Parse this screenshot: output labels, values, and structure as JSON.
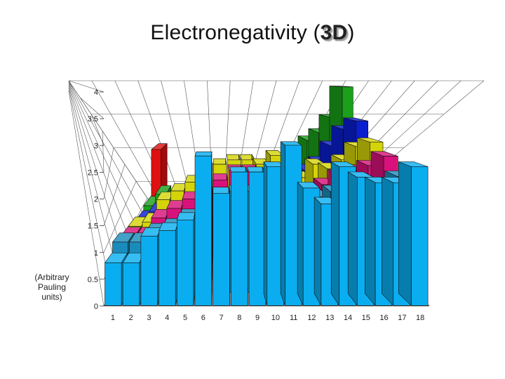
{
  "title": {
    "main": "Electronegativity (",
    "badge": "3D",
    "close": ")"
  },
  "chart_data": {
    "type": "bar",
    "title": "Electronegativity ( 3D )",
    "ylabel": "(Arbitrary Pauling units)",
    "ylabel_lines": [
      "(Arbitrary",
      "Pauling",
      "units)"
    ],
    "categories": [
      "1",
      "2",
      "3",
      "4",
      "5",
      "6",
      "7",
      "8",
      "9",
      "10",
      "11",
      "12",
      "13",
      "14",
      "15",
      "16",
      "17",
      "18"
    ],
    "yticks": [
      "0",
      "0.5",
      "1",
      "1.5",
      "2",
      "2.5",
      "3",
      "3.5",
      "4"
    ],
    "ylim": [
      0,
      4
    ],
    "series": [
      {
        "color": "#0aaef0",
        "values": [
          0.8,
          0.8,
          1.3,
          1.4,
          1.6,
          2.8,
          2.1,
          2.5,
          2.5,
          2.6,
          3.0,
          2.2,
          1.9,
          2.6,
          2.4,
          2.3,
          2.3,
          2.6
        ]
      },
      {
        "color": "#1a8cbc",
        "values": [
          1.0,
          1.0,
          1.2,
          1.3,
          1.5,
          1.7,
          1.8,
          2.0,
          2.0,
          1.9,
          2.1,
          1.9,
          1.9,
          2.0,
          1.9,
          2.0,
          2.1,
          2.3
        ]
      },
      {
        "color": "#d8127a",
        "values": [
          0.9,
          0.9,
          1.3,
          1.5,
          1.7,
          1.9,
          2.1,
          2.3,
          2.3,
          2.2,
          2.1,
          1.8,
          1.8,
          2.0,
          2.2,
          2.3,
          2.4,
          2.6
        ]
      },
      {
        "color": "#d4d40a",
        "values": [
          0.9,
          1.0,
          1.5,
          1.7,
          1.9,
          2.2,
          2.3,
          2.4,
          2.4,
          2.3,
          2.5,
          2.0,
          2.0,
          2.3,
          2.2,
          2.4,
          2.7,
          2.8
        ]
      },
      {
        "color": "#0a1ed0",
        "values": [
          0.8,
          1.0,
          null,
          null,
          null,
          null,
          null,
          null,
          null,
          null,
          null,
          null,
          1.8,
          2.0,
          2.2,
          2.6,
          3.0,
          3.2
        ]
      },
      {
        "color": "#1aa01a",
        "values": [
          0.9,
          1.2,
          null,
          null,
          null,
          null,
          null,
          null,
          null,
          null,
          null,
          null,
          1.6,
          2.2,
          2.6,
          2.8,
          3.2,
          4.0
        ]
      },
      {
        "color": "#e01010",
        "values": [
          2.2,
          null,
          null,
          null,
          null,
          null,
          null,
          null,
          null,
          null,
          null,
          null,
          null,
          null,
          null,
          null,
          null,
          null
        ]
      }
    ]
  }
}
